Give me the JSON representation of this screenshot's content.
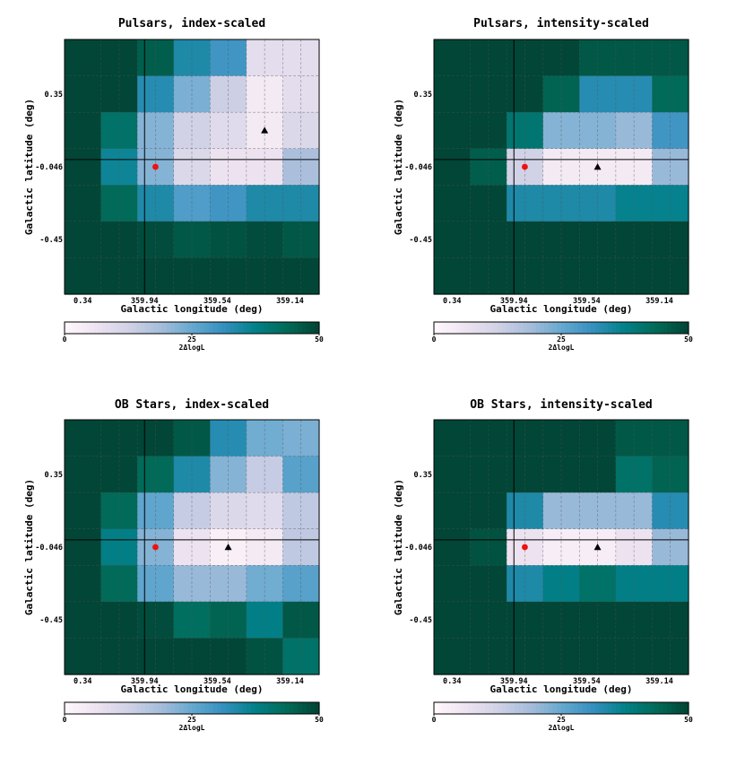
{
  "figure": {
    "colormap": "PuBuGn",
    "colormap_stops": [
      "#fff7fb",
      "#ece2f0",
      "#d0d1e6",
      "#a6bddb",
      "#67a9cf",
      "#3690c0",
      "#02818a",
      "#016c59",
      "#014636"
    ],
    "grid_line_color": "#555555",
    "crosshair_color": "#000000",
    "marker_colors": {
      "circle": "#ee1111",
      "triangle": "#000000"
    }
  },
  "chart_data": [
    {
      "type": "heatmap",
      "title": "Pulsars, index-scaled",
      "xlabel": "Galactic longitude (deg)",
      "ylabel": "Galactic latitude (deg)",
      "x_tick_labels": [
        "0.34",
        "359.94",
        "359.54",
        "359.14"
      ],
      "y_tick_labels": [
        "0.35",
        "-0.046",
        "-0.45"
      ],
      "colorbar": {
        "label": "2ΔlogL",
        "ticks": [
          "0",
          "25",
          "50"
        ],
        "range": [
          0,
          50
        ]
      },
      "crosshair": {
        "col": 2.2,
        "row": 3.3
      },
      "markers": [
        {
          "shape": "circle",
          "col": 2.5,
          "row": 3.5
        },
        {
          "shape": "triangle",
          "col": 5.5,
          "row": 2.5
        }
      ],
      "z": [
        [
          50,
          50,
          46,
          34,
          30,
          8,
          8
        ],
        [
          50,
          50,
          33,
          23,
          13,
          4,
          8
        ],
        [
          50,
          42,
          22,
          12,
          9,
          4,
          10
        ],
        [
          50,
          36,
          22,
          10,
          6,
          6,
          18
        ],
        [
          50,
          44,
          34,
          28,
          30,
          34,
          34
        ],
        [
          50,
          50,
          49,
          47,
          48,
          49,
          47
        ],
        [
          50,
          50,
          50,
          50,
          50,
          50,
          50
        ]
      ]
    },
    {
      "type": "heatmap",
      "title": "Pulsars, intensity-scaled",
      "xlabel": "Galactic longitude (deg)",
      "ylabel": "Galactic latitude (deg)",
      "x_tick_labels": [
        "0.34",
        "359.94",
        "359.54",
        "359.14"
      ],
      "y_tick_labels": [
        "0.35",
        "-0.046",
        "-0.45"
      ],
      "colorbar": {
        "label": "2ΔlogL",
        "ticks": [
          "0",
          "25",
          "50"
        ],
        "range": [
          0,
          50
        ]
      },
      "crosshair": {
        "col": 2.2,
        "row": 3.3
      },
      "markers": [
        {
          "shape": "circle",
          "col": 2.5,
          "row": 3.5
        },
        {
          "shape": "triangle",
          "col": 4.5,
          "row": 3.5
        }
      ],
      "z": [
        [
          50,
          50,
          50,
          50,
          47,
          47,
          47
        ],
        [
          50,
          50,
          50,
          45,
          33,
          33,
          44
        ],
        [
          50,
          50,
          41,
          22,
          22,
          20,
          30
        ],
        [
          50,
          46,
          12,
          4,
          4,
          4,
          20
        ],
        [
          50,
          50,
          34,
          34,
          34,
          37,
          37
        ],
        [
          50,
          50,
          50,
          50,
          50,
          50,
          50
        ],
        [
          50,
          50,
          50,
          50,
          50,
          50,
          50
        ]
      ]
    },
    {
      "type": "heatmap",
      "title": "OB Stars, index-scaled",
      "xlabel": "Galactic longitude (deg)",
      "ylabel": "Galactic latitude (deg)",
      "x_tick_labels": [
        "0.34",
        "359.94",
        "359.54",
        "359.14"
      ],
      "y_tick_labels": [
        "0.35",
        "-0.046",
        "-0.45"
      ],
      "colorbar": {
        "label": "2ΔlogL",
        "ticks": [
          "0",
          "25",
          "50"
        ],
        "range": [
          0,
          50
        ]
      },
      "crosshair": {
        "col": 2.2,
        "row": 3.3
      },
      "markers": [
        {
          "shape": "circle",
          "col": 2.5,
          "row": 3.5
        },
        {
          "shape": "triangle",
          "col": 4.5,
          "row": 3.5
        }
      ],
      "z": [
        [
          50,
          50,
          50,
          47,
          33,
          24,
          23
        ],
        [
          50,
          50,
          44,
          34,
          22,
          14,
          27
        ],
        [
          50,
          44,
          26,
          14,
          10,
          9,
          15
        ],
        [
          50,
          38,
          22,
          6,
          2,
          4,
          15
        ],
        [
          50,
          44,
          26,
          20,
          20,
          24,
          27
        ],
        [
          50,
          50,
          49,
          43,
          45,
          38,
          47
        ],
        [
          50,
          50,
          50,
          50,
          50,
          48,
          42
        ]
      ]
    },
    {
      "type": "heatmap",
      "title": "OB Stars, intensity-scaled",
      "xlabel": "Galactic longitude (deg)",
      "ylabel": "Galactic latitude (deg)",
      "x_tick_labels": [
        "0.34",
        "359.94",
        "359.54",
        "359.14"
      ],
      "y_tick_labels": [
        "0.35",
        "-0.046",
        "-0.45"
      ],
      "colorbar": {
        "label": "2ΔlogL",
        "ticks": [
          "0",
          "25",
          "50"
        ],
        "range": [
          0,
          50
        ]
      },
      "crosshair": {
        "col": 2.2,
        "row": 3.3
      },
      "markers": [
        {
          "shape": "circle",
          "col": 2.5,
          "row": 3.5
        },
        {
          "shape": "triangle",
          "col": 4.5,
          "row": 3.5
        }
      ],
      "z": [
        [
          50,
          50,
          50,
          50,
          50,
          47,
          47
        ],
        [
          50,
          50,
          50,
          50,
          50,
          42,
          45
        ],
        [
          50,
          50,
          34,
          20,
          20,
          20,
          33
        ],
        [
          50,
          48,
          6,
          3,
          3,
          6,
          20
        ],
        [
          50,
          50,
          34,
          38,
          42,
          38,
          38
        ],
        [
          50,
          50,
          50,
          50,
          50,
          50,
          50
        ],
        [
          50,
          50,
          50,
          50,
          50,
          50,
          50
        ]
      ]
    }
  ]
}
